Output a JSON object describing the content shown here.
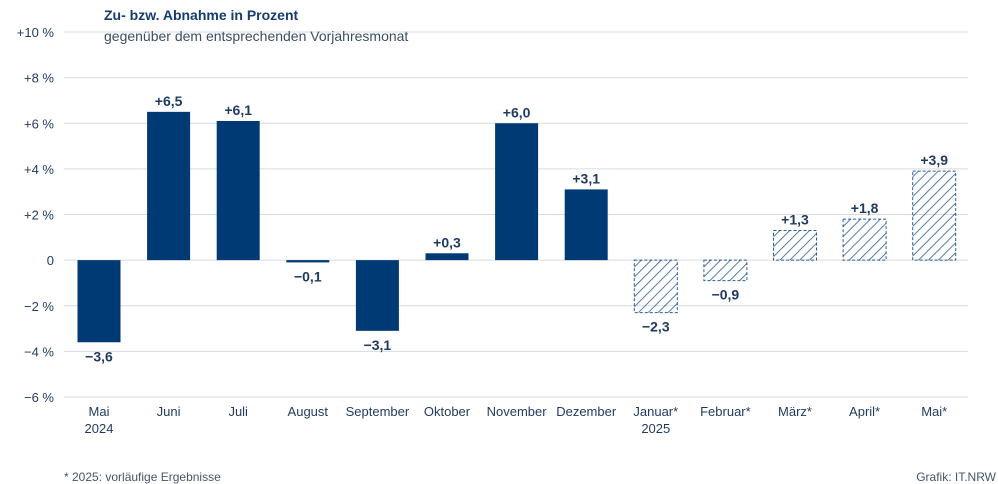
{
  "chart_data": {
    "type": "bar",
    "title": "Zu- bzw. Abnahme in Prozent",
    "subtitle": "gegenüber dem entsprechenden Vorjahresmonat",
    "categories": [
      [
        "Mai",
        "2024"
      ],
      [
        "Juni"
      ],
      [
        "Juli"
      ],
      [
        "August"
      ],
      [
        "September"
      ],
      [
        "Oktober"
      ],
      [
        "November"
      ],
      [
        "Dezember"
      ],
      [
        "Januar*",
        "2025"
      ],
      [
        "Februar*"
      ],
      [
        "März*"
      ],
      [
        "April*"
      ],
      [
        "Mai*"
      ]
    ],
    "values": [
      -3.6,
      6.5,
      6.1,
      -0.1,
      -3.1,
      0.3,
      6.0,
      3.1,
      -2.3,
      -0.9,
      1.3,
      1.8,
      3.9
    ],
    "value_labels": [
      "−3,6",
      "+6,5",
      "+6,1",
      "−0,1",
      "−3,1",
      "+0,3",
      "+6,0",
      "+3,1",
      "−2,3",
      "−0,9",
      "+1,3",
      "+1,8",
      "+3,9"
    ],
    "provisional": [
      false,
      false,
      false,
      false,
      false,
      false,
      false,
      false,
      true,
      true,
      true,
      true,
      true
    ],
    "ylim": [
      -6,
      10
    ],
    "yticks": [
      10,
      8,
      6,
      4,
      2,
      0,
      -2,
      -4,
      -6
    ],
    "ytick_labels": [
      "+10 %",
      "+8 %",
      "+6 %",
      "+4 %",
      "+2 %",
      "0",
      "−2 %",
      "−4 %",
      "−6 %"
    ],
    "grid": true,
    "colors": {
      "bar": "#003a75",
      "hatch": "#2a5c96",
      "grid": "#d6dbe1",
      "text": "#1f3a5f"
    }
  },
  "footnote": "*  2025: vorläufige Ergebnisse",
  "source": "Grafik: IT.NRW"
}
